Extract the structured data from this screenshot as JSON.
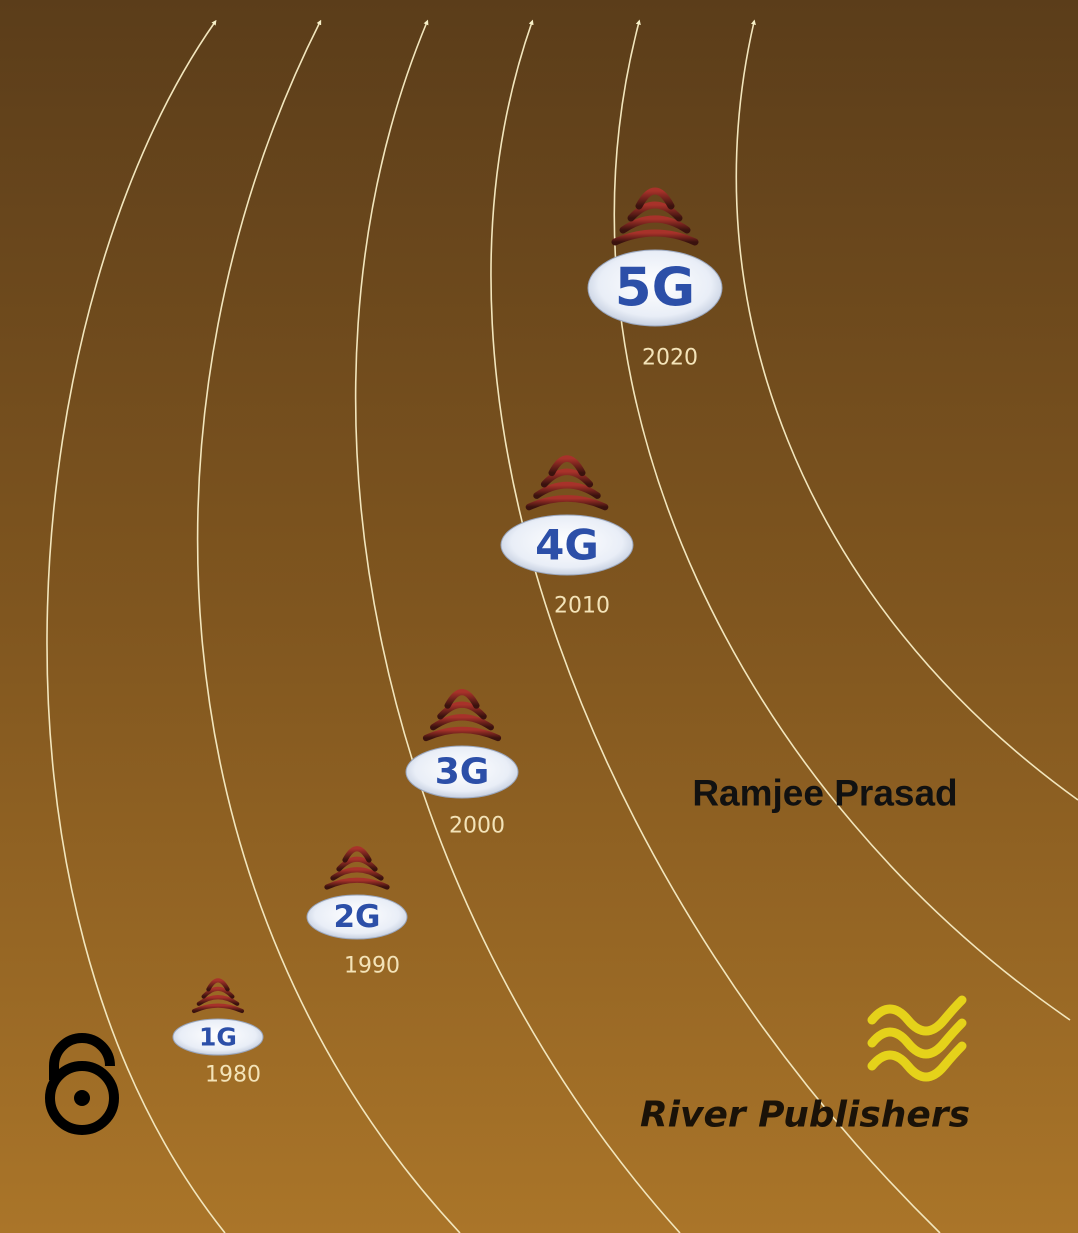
{
  "generations": [
    {
      "label": "1G",
      "year": "1980"
    },
    {
      "label": "2G",
      "year": "1990"
    },
    {
      "label": "3G",
      "year": "2000"
    },
    {
      "label": "4G",
      "year": "2010"
    },
    {
      "label": "5G",
      "year": "2020"
    }
  ],
  "author": "Ramjee Prasad",
  "publisher": "River Publishers"
}
